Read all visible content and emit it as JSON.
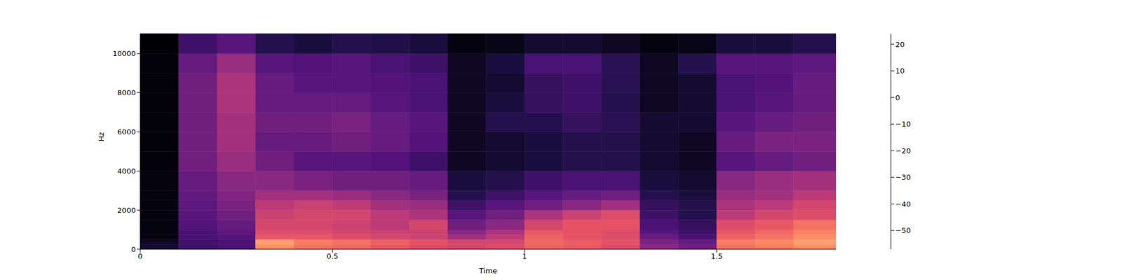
{
  "chart_data": {
    "type": "heatmap",
    "xlabel": "Time",
    "ylabel": "Hz",
    "xlim": [
      0,
      1.81
    ],
    "xticks": [
      0,
      0.5,
      1,
      1.5
    ],
    "ylim": [
      0,
      11025
    ],
    "yticks": [
      0,
      2000,
      4000,
      6000,
      8000,
      10000
    ],
    "x_bins": [
      0,
      0.1,
      0.2,
      0.3,
      0.4,
      0.5,
      0.6,
      0.7,
      0.8,
      0.9,
      1.0,
      1.1,
      1.2,
      1.3,
      1.4,
      1.5,
      1.6,
      1.7,
      1.81
    ],
    "y_bins": [
      0,
      250,
      500,
      750,
      1000,
      1500,
      2000,
      2500,
      3000,
      4000,
      5000,
      6000,
      7000,
      8000,
      9000,
      10000,
      11025
    ],
    "cells": [
      [
        -50,
        -40,
        -38,
        5,
        0,
        -2,
        -5,
        -8,
        -10,
        -8,
        -3,
        -5,
        -8,
        -25,
        -30,
        0,
        2,
        5
      ],
      [
        -52,
        -40,
        -38,
        8,
        2,
        0,
        -3,
        -6,
        -10,
        -10,
        -2,
        -4,
        -6,
        -28,
        -32,
        2,
        4,
        8
      ],
      [
        -55,
        -38,
        -36,
        -5,
        -5,
        -8,
        -10,
        -12,
        -20,
        -15,
        -3,
        -6,
        -8,
        -32,
        -38,
        -3,
        0,
        5
      ],
      [
        -55,
        -38,
        -34,
        -8,
        -8,
        -10,
        -12,
        -12,
        -25,
        -18,
        -5,
        -6,
        -8,
        -35,
        -40,
        -5,
        -2,
        3
      ],
      [
        -55,
        -36,
        -32,
        -10,
        -10,
        -12,
        -15,
        -10,
        -30,
        -25,
        -10,
        -6,
        -6,
        -38,
        -42,
        -8,
        -5,
        0
      ],
      [
        -55,
        -35,
        -30,
        -12,
        -10,
        -10,
        -15,
        -18,
        -35,
        -30,
        -18,
        -12,
        -8,
        -40,
        -45,
        -15,
        -10,
        -8
      ],
      [
        -55,
        -34,
        -28,
        -15,
        -12,
        -14,
        -20,
        -22,
        -40,
        -35,
        -30,
        -25,
        -20,
        -42,
        -45,
        -18,
        -15,
        -10
      ],
      [
        -55,
        -33,
        -27,
        -20,
        -20,
        -22,
        -25,
        -28,
        -45,
        -40,
        -35,
        -32,
        -30,
        -45,
        -48,
        -22,
        -20,
        -15
      ],
      [
        -55,
        -32,
        -25,
        -25,
        -28,
        -30,
        -30,
        -32,
        -48,
        -45,
        -40,
        -38,
        -38,
        -48,
        -50,
        -25,
        -22,
        -20
      ],
      [
        -56,
        -30,
        -22,
        -30,
        -35,
        -35,
        -36,
        -40,
        -52,
        -50,
        -48,
        -45,
        -45,
        -50,
        -52,
        -35,
        -32,
        -30
      ],
      [
        -56,
        -30,
        -20,
        -32,
        -32,
        -30,
        -32,
        -36,
        -52,
        -50,
        -48,
        -45,
        -45,
        -50,
        -52,
        -32,
        -28,
        -28
      ],
      [
        -56,
        -30,
        -20,
        -30,
        -30,
        -28,
        -32,
        -35,
        -52,
        -45,
        -45,
        -42,
        -44,
        -50,
        -50,
        -35,
        -32,
        -30
      ],
      [
        -56,
        -30,
        -18,
        -32,
        -32,
        -32,
        -35,
        -38,
        -52,
        -48,
        -42,
        -40,
        -45,
        -52,
        -50,
        -38,
        -35,
        -32
      ],
      [
        -56,
        -30,
        -18,
        -32,
        -35,
        -35,
        -36,
        -38,
        -52,
        -50,
        -42,
        -40,
        -44,
        -52,
        -50,
        -38,
        -36,
        -32
      ],
      [
        -56,
        -32,
        -22,
        -35,
        -36,
        -35,
        -38,
        -40,
        -52,
        -48,
        -38,
        -38,
        -44,
        -52,
        -45,
        -35,
        -35,
        -34
      ],
      [
        -57,
        -40,
        -35,
        -45,
        -48,
        -45,
        -46,
        -48,
        -55,
        -54,
        -50,
        -50,
        -52,
        -55,
        -54,
        -48,
        -48,
        -45
      ]
    ],
    "colorbar": {
      "range": [
        -57,
        24
      ],
      "ticks": [
        {
          "value": -50,
          "label": "−50"
        },
        {
          "value": -40,
          "label": "−40"
        },
        {
          "value": -30,
          "label": "−30"
        },
        {
          "value": -20,
          "label": "−20"
        },
        {
          "value": -10,
          "label": "−10"
        },
        0,
        10,
        20
      ]
    }
  }
}
